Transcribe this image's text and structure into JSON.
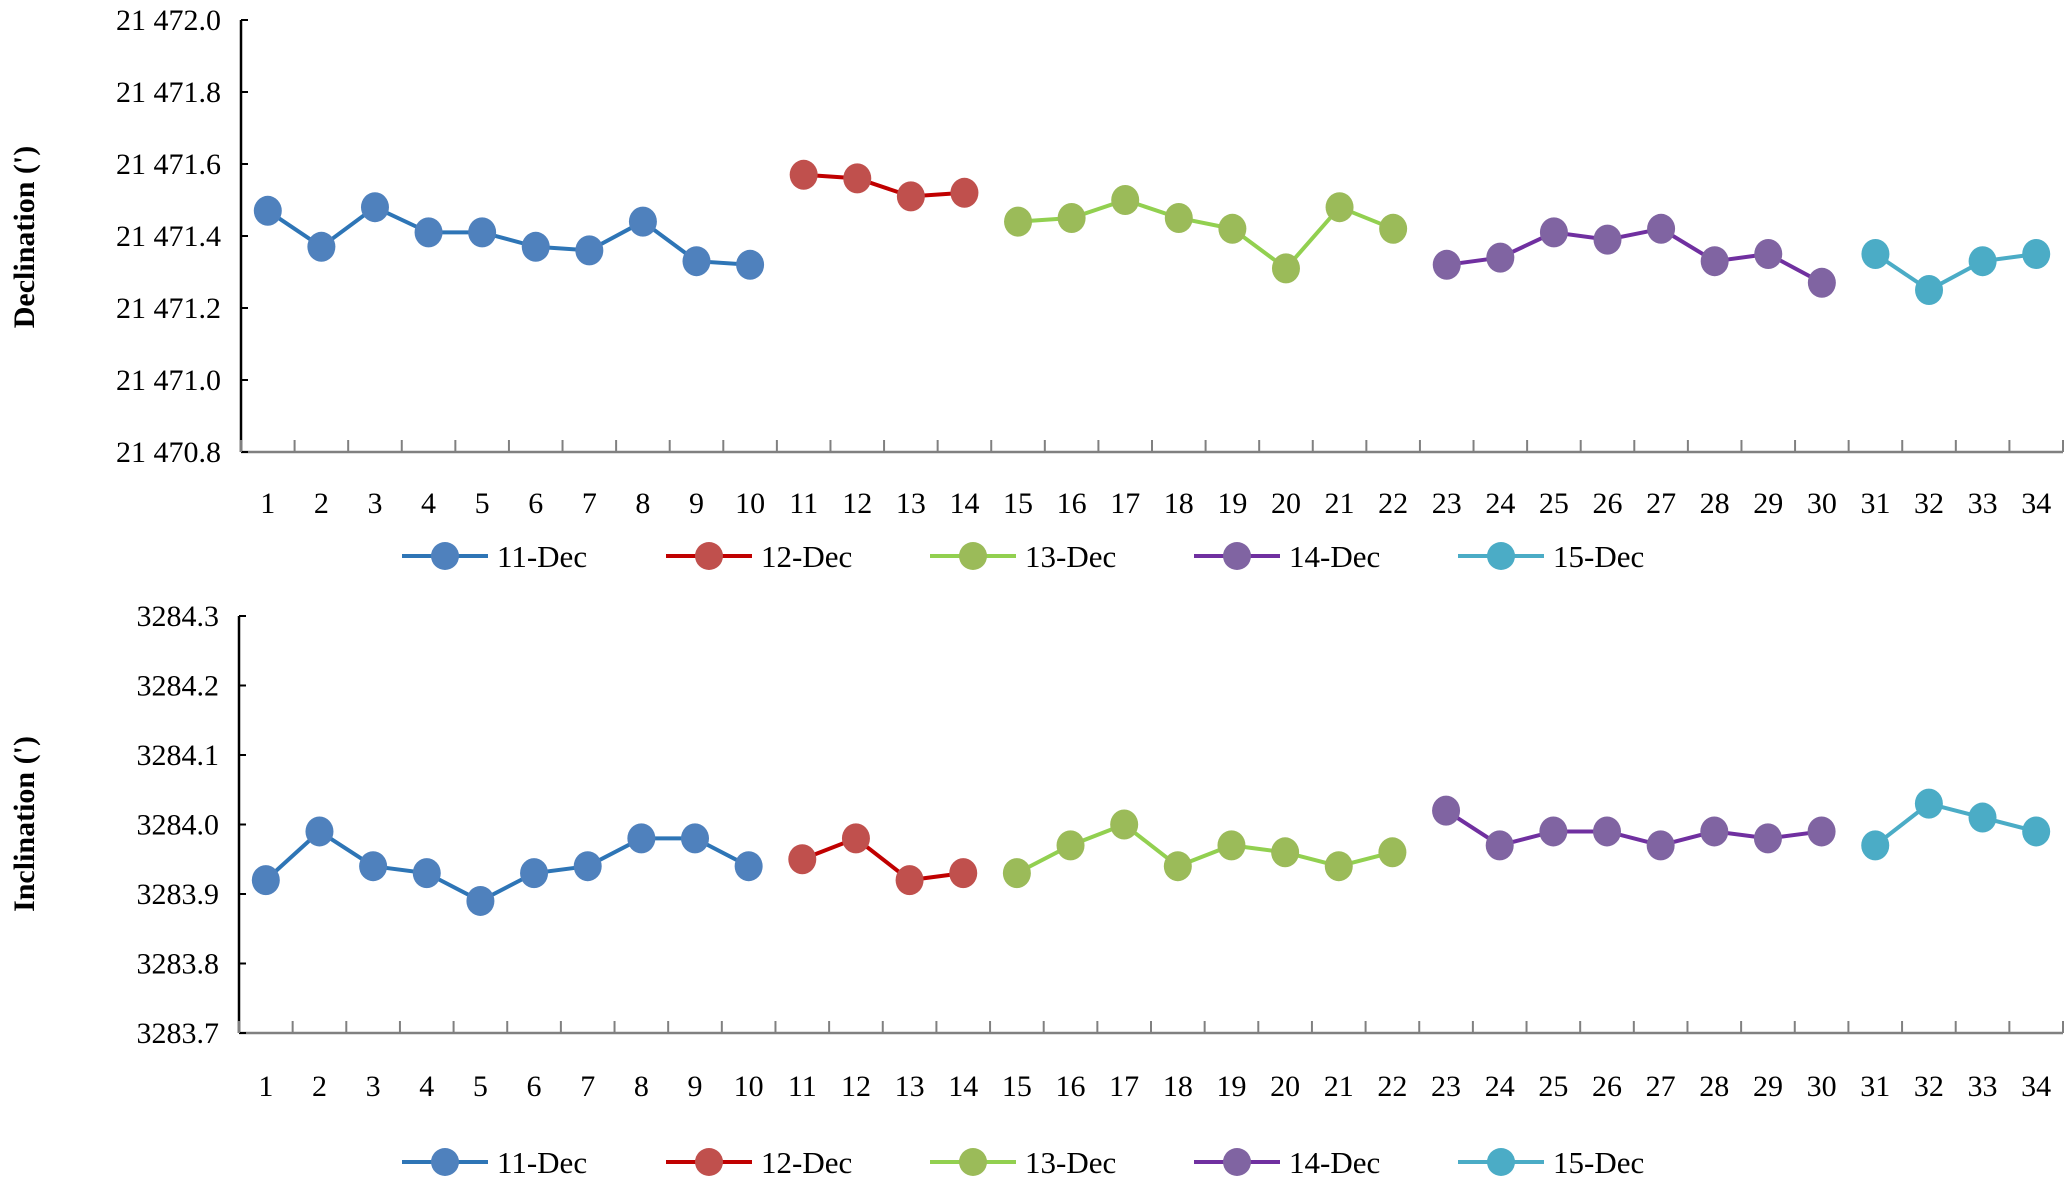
{
  "chart_data": [
    {
      "type": "line",
      "title": "",
      "xlabel": "",
      "ylabel": "Declination (')",
      "ylim": [
        21470.8,
        21472.0
      ],
      "yticks": [
        "21 470.8",
        "21 471.0",
        "21 471.2",
        "21 471.4",
        "21 471.6",
        "21 471.8",
        "21 472.0"
      ],
      "ytick_values": [
        21470.8,
        21471.0,
        21471.2,
        21471.4,
        21471.6,
        21471.8,
        21472.0
      ],
      "x": [
        1,
        2,
        3,
        4,
        5,
        6,
        7,
        8,
        9,
        10,
        11,
        12,
        13,
        14,
        15,
        16,
        17,
        18,
        19,
        20,
        21,
        22,
        23,
        24,
        25,
        26,
        27,
        28,
        29,
        30,
        31,
        32,
        33,
        34
      ],
      "grid": false,
      "legend": "bottom",
      "series": [
        {
          "name": "11-Dec",
          "line": "#2e75b6",
          "marker": "#4f81bd",
          "x": [
            1,
            2,
            3,
            4,
            5,
            6,
            7,
            8,
            9,
            10
          ],
          "values": [
            21471.47,
            21471.37,
            21471.48,
            21471.41,
            21471.41,
            21471.37,
            21471.36,
            21471.44,
            21471.33,
            21471.32
          ]
        },
        {
          "name": "12-Dec",
          "line": "#c00000",
          "marker": "#c0504d",
          "x": [
            11,
            12,
            13,
            14
          ],
          "values": [
            21471.57,
            21471.56,
            21471.51,
            21471.52
          ]
        },
        {
          "name": "13-Dec",
          "line": "#92d050",
          "marker": "#9bbb59",
          "x": [
            15,
            16,
            17,
            18,
            19,
            20,
            21,
            22
          ],
          "values": [
            21471.44,
            21471.45,
            21471.5,
            21471.45,
            21471.42,
            21471.31,
            21471.48,
            21471.42
          ]
        },
        {
          "name": "14-Dec",
          "line": "#7030a0",
          "marker": "#8064a2",
          "x": [
            23,
            24,
            25,
            26,
            27,
            28,
            29,
            30
          ],
          "values": [
            21471.32,
            21471.34,
            21471.41,
            21471.39,
            21471.42,
            21471.33,
            21471.35,
            21471.27
          ]
        },
        {
          "name": "15-Dec",
          "line": "#4bacc6",
          "marker": "#4bacc6",
          "x": [
            31,
            32,
            33,
            34
          ],
          "values": [
            21471.35,
            21471.25,
            21471.33,
            21471.35
          ]
        }
      ]
    },
    {
      "type": "line",
      "title": "",
      "xlabel": "",
      "ylabel": "Inclination (')",
      "ylim": [
        3283.7,
        3284.3
      ],
      "yticks": [
        "3283.7",
        "3283.8",
        "3283.9",
        "3284.0",
        "3284.1",
        "3284.2",
        "3284.3"
      ],
      "ytick_values": [
        3283.7,
        3283.8,
        3283.9,
        3284.0,
        3284.1,
        3284.2,
        3284.3
      ],
      "x": [
        1,
        2,
        3,
        4,
        5,
        6,
        7,
        8,
        9,
        10,
        11,
        12,
        13,
        14,
        15,
        16,
        17,
        18,
        19,
        20,
        21,
        22,
        23,
        24,
        25,
        26,
        27,
        28,
        29,
        30,
        31,
        32,
        33,
        34
      ],
      "grid": false,
      "legend": "bottom",
      "series": [
        {
          "name": "11-Dec",
          "line": "#2e75b6",
          "marker": "#4f81bd",
          "x": [
            1,
            2,
            3,
            4,
            5,
            6,
            7,
            8,
            9,
            10
          ],
          "values": [
            3283.92,
            3283.99,
            3283.94,
            3283.93,
            3283.89,
            3283.93,
            3283.94,
            3283.98,
            3283.98,
            3283.94
          ]
        },
        {
          "name": "12-Dec",
          "line": "#c00000",
          "marker": "#c0504d",
          "x": [
            11,
            12,
            13,
            14
          ],
          "values": [
            3283.95,
            3283.98,
            3283.92,
            3283.93
          ]
        },
        {
          "name": "13-Dec",
          "line": "#92d050",
          "marker": "#9bbb59",
          "x": [
            15,
            16,
            17,
            18,
            19,
            20,
            21,
            22
          ],
          "values": [
            3283.93,
            3283.97,
            3284.0,
            3283.94,
            3283.97,
            3283.96,
            3283.94,
            3283.96
          ]
        },
        {
          "name": "14-Dec",
          "line": "#7030a0",
          "marker": "#8064a2",
          "x": [
            23,
            24,
            25,
            26,
            27,
            28,
            29,
            30
          ],
          "values": [
            3284.02,
            3283.97,
            3283.99,
            3283.99,
            3283.97,
            3283.99,
            3283.98,
            3283.99
          ]
        },
        {
          "name": "15-Dec",
          "line": "#4bacc6",
          "marker": "#4bacc6",
          "x": [
            31,
            32,
            33,
            34
          ],
          "values": [
            3283.97,
            3284.03,
            3284.01,
            3283.99
          ]
        }
      ]
    }
  ]
}
